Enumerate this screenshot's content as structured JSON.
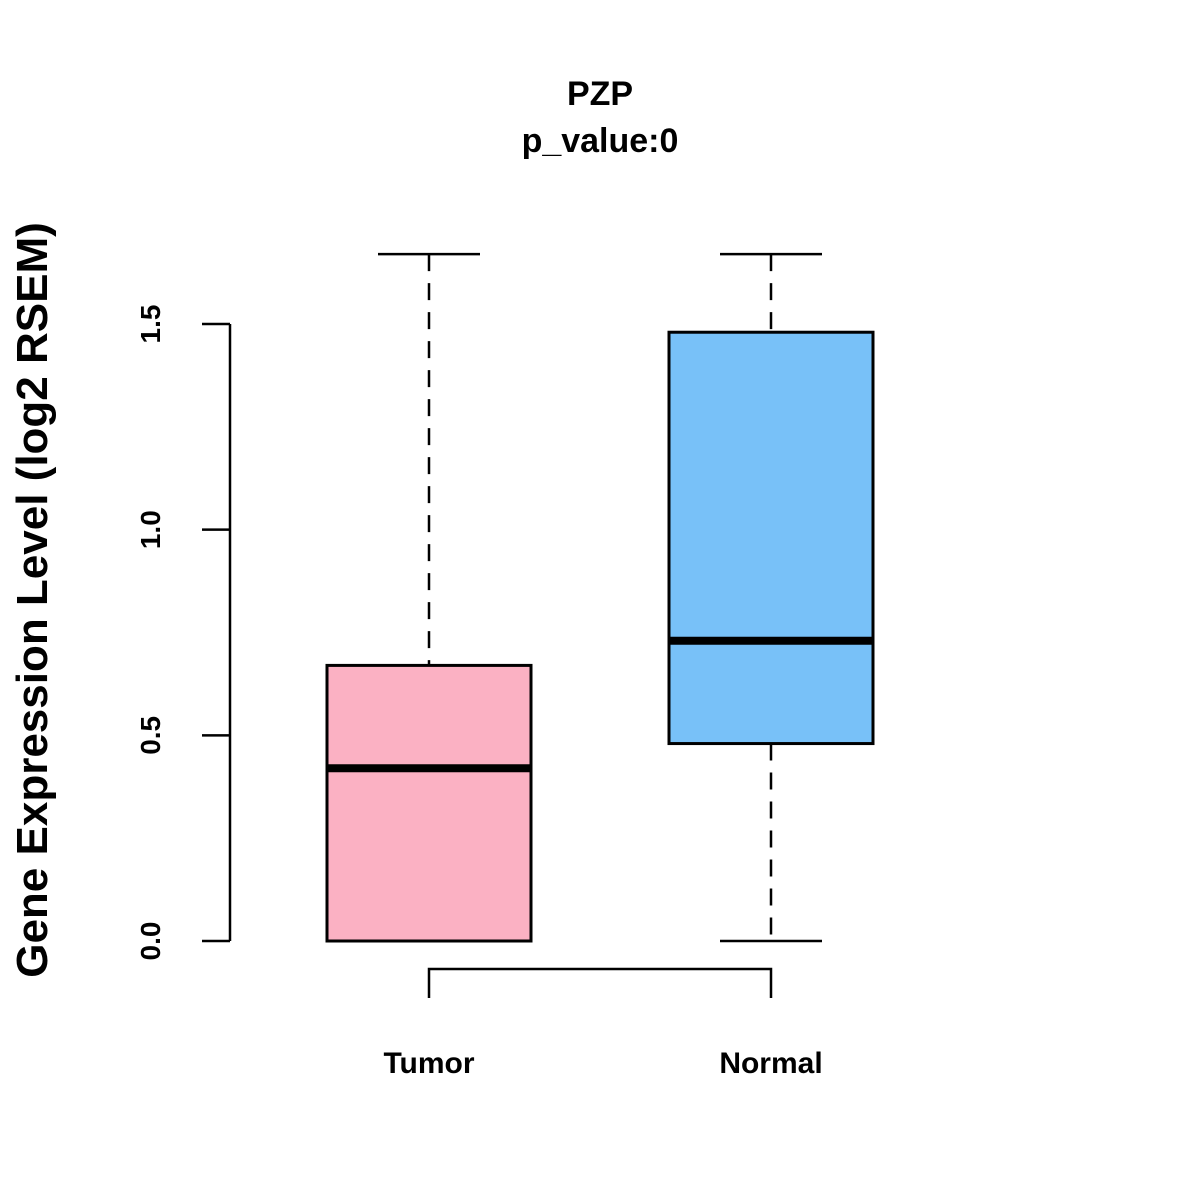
{
  "chart_data": {
    "type": "boxplot",
    "title": "PZP",
    "subtitle": "p_value:0",
    "xlabel": "",
    "ylabel": "Gene Expression Level (log2 RSEM)",
    "ylim": [
      0,
      1.5
    ],
    "yticks": [
      0,
      0.5,
      1,
      1.5
    ],
    "ytick_labels": [
      "0.0",
      "0.5",
      "1.0",
      "1.5"
    ],
    "grid": false,
    "categories": [
      "Tumor",
      "Normal"
    ],
    "boxes": [
      {
        "name": "Tumor",
        "min": 0.0,
        "q1": 0.0,
        "median": 0.42,
        "q3": 0.67,
        "max": 1.67,
        "color": "#FBB1C3"
      },
      {
        "name": "Normal",
        "min": 0.0,
        "q1": 0.48,
        "median": 0.73,
        "q3": 1.48,
        "max": 1.67,
        "color": "#78C1F8"
      }
    ],
    "comparison_bracket": {
      "from": "Tumor",
      "to": "Normal"
    }
  }
}
